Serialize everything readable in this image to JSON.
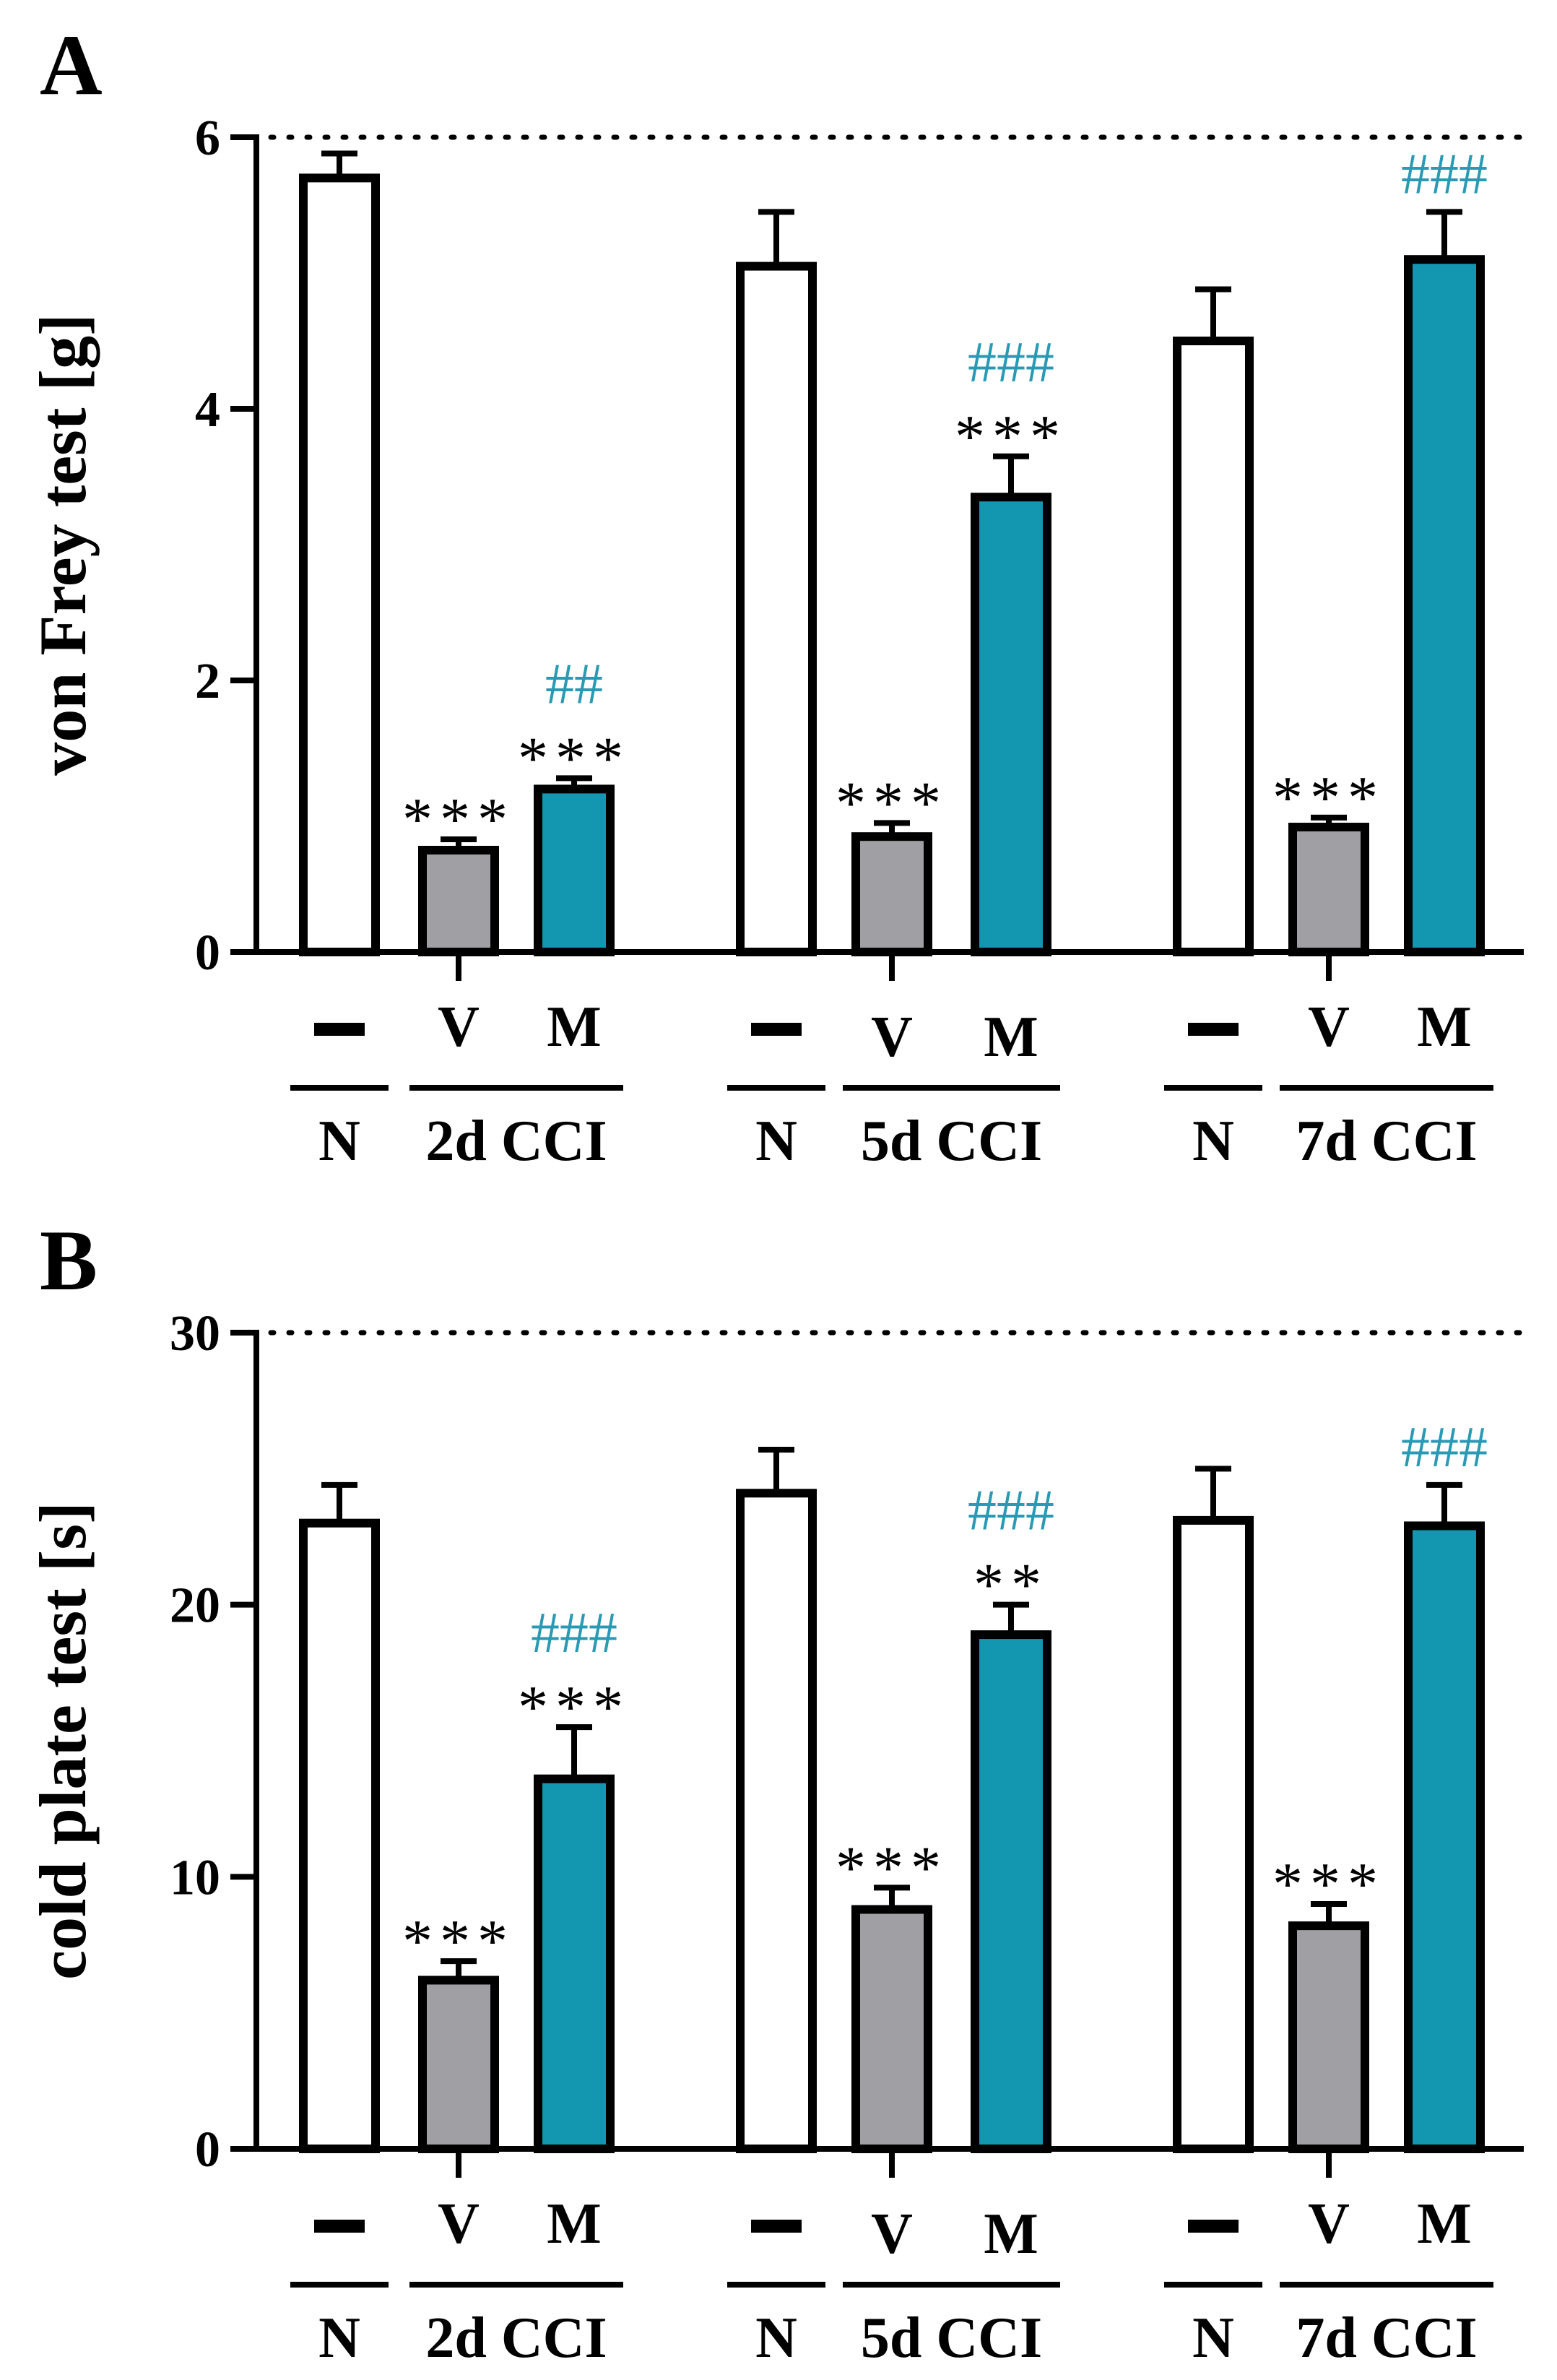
{
  "colors": {
    "normal": "#ffffff",
    "vehicle": "#a0a0a4",
    "drug": "#1396b0",
    "hash": "#2a9ab4",
    "ink": "#000000"
  },
  "chart_data": [
    {
      "panel": "A",
      "type": "bar",
      "ylabel": "von Frey test [g]",
      "ylim": [
        0,
        6
      ],
      "yticks": [
        "0",
        "2",
        "4",
        "6"
      ],
      "reference_line": 6,
      "groups": [
        {
          "name": "2d CCI",
          "normal_label": "N",
          "bars": [
            {
              "tick": "–",
              "role": "normal",
              "value": 5.7,
              "error": 0.18,
              "stars": "",
              "hashes": ""
            },
            {
              "tick": "V",
              "role": "vehicle",
              "value": 0.75,
              "error": 0.08,
              "stars": "***",
              "hashes": ""
            },
            {
              "tick": "M",
              "role": "drug",
              "value": 1.2,
              "error": 0.08,
              "stars": "***",
              "hashes": "##"
            }
          ]
        },
        {
          "name": "5d CCI",
          "normal_label": "N",
          "bars": [
            {
              "tick": "–",
              "role": "normal",
              "value": 5.05,
              "error": 0.4,
              "stars": "",
              "hashes": ""
            },
            {
              "tick": "V",
              "role": "vehicle",
              "value": 0.85,
              "error": 0.1,
              "stars": "***",
              "hashes": ""
            },
            {
              "tick": "M",
              "role": "drug",
              "value": 3.35,
              "error": 0.3,
              "stars": "***",
              "hashes": "###"
            }
          ]
        },
        {
          "name": "7d CCI",
          "normal_label": "N",
          "bars": [
            {
              "tick": "–",
              "role": "normal",
              "value": 4.5,
              "error": 0.38,
              "stars": "",
              "hashes": ""
            },
            {
              "tick": "V",
              "role": "vehicle",
              "value": 0.92,
              "error": 0.07,
              "stars": "***",
              "hashes": ""
            },
            {
              "tick": "M",
              "role": "drug",
              "value": 5.1,
              "error": 0.35,
              "stars": "",
              "hashes": "###"
            }
          ]
        }
      ]
    },
    {
      "panel": "B",
      "type": "bar",
      "ylabel": "cold plate test [s]",
      "ylim": [
        0,
        30
      ],
      "yticks": [
        "0",
        "10",
        "20",
        "30"
      ],
      "reference_line": 30,
      "groups": [
        {
          "name": "2d CCI",
          "normal_label": "N",
          "bars": [
            {
              "tick": "–",
              "role": "normal",
              "value": 23.0,
              "error": 1.4,
              "stars": "",
              "hashes": ""
            },
            {
              "tick": "V",
              "role": "vehicle",
              "value": 6.2,
              "error": 0.7,
              "stars": "***",
              "hashes": ""
            },
            {
              "tick": "M",
              "role": "drug",
              "value": 13.6,
              "error": 1.9,
              "stars": "***",
              "hashes": "###"
            }
          ]
        },
        {
          "name": "5d CCI",
          "normal_label": "N",
          "bars": [
            {
              "tick": "–",
              "role": "normal",
              "value": 24.1,
              "error": 1.6,
              "stars": "",
              "hashes": ""
            },
            {
              "tick": "V",
              "role": "vehicle",
              "value": 8.8,
              "error": 0.8,
              "stars": "***",
              "hashes": ""
            },
            {
              "tick": "M",
              "role": "drug",
              "value": 18.9,
              "error": 1.1,
              "stars": "**",
              "hashes": "###"
            }
          ]
        },
        {
          "name": "7d CCI",
          "normal_label": "N",
          "bars": [
            {
              "tick": "–",
              "role": "normal",
              "value": 23.1,
              "error": 1.9,
              "stars": "",
              "hashes": ""
            },
            {
              "tick": "V",
              "role": "vehicle",
              "value": 8.2,
              "error": 0.8,
              "stars": "***",
              "hashes": ""
            },
            {
              "tick": "M",
              "role": "drug",
              "value": 22.9,
              "error": 1.5,
              "stars": "",
              "hashes": "###"
            }
          ]
        }
      ]
    }
  ]
}
